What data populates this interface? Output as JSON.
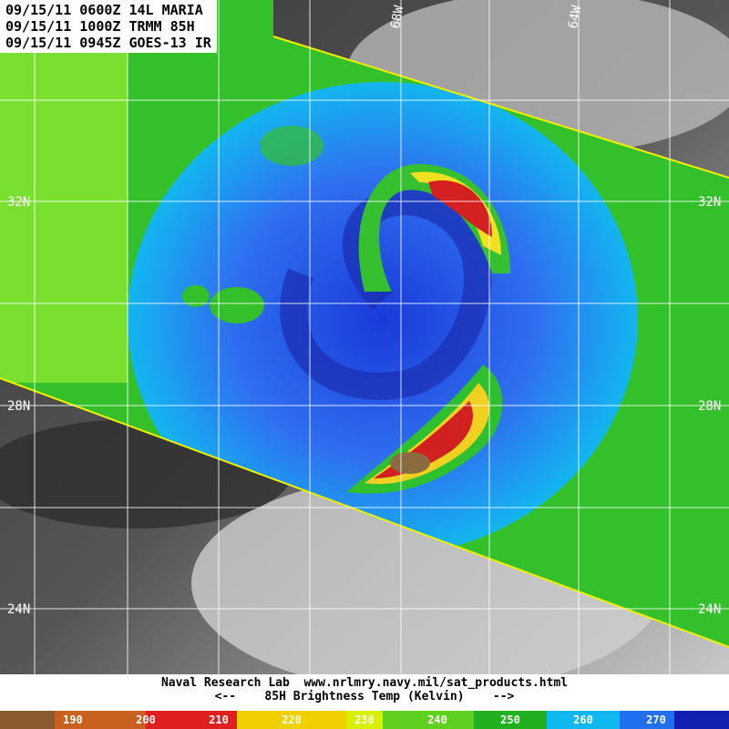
{
  "header": {
    "lines": [
      "09/15/11 0600Z 14L MARIA",
      "09/15/11 1000Z TRMM 85H",
      "09/15/11 0945Z GOES-13 IR"
    ]
  },
  "map": {
    "latitude_labels": [
      "32N",
      "28N",
      "24N"
    ],
    "longitude_labels": [
      "68W",
      "64W"
    ]
  },
  "footer": {
    "source": "Naval Research Lab  www.nrlmry.navy.mil/sat_products.html",
    "scale_title": "<--    85H Brightness Temp (Kelvin)    -->"
  },
  "colorbar": {
    "ticks": [
      190,
      200,
      210,
      220,
      230,
      240,
      250,
      260,
      270
    ]
  }
}
